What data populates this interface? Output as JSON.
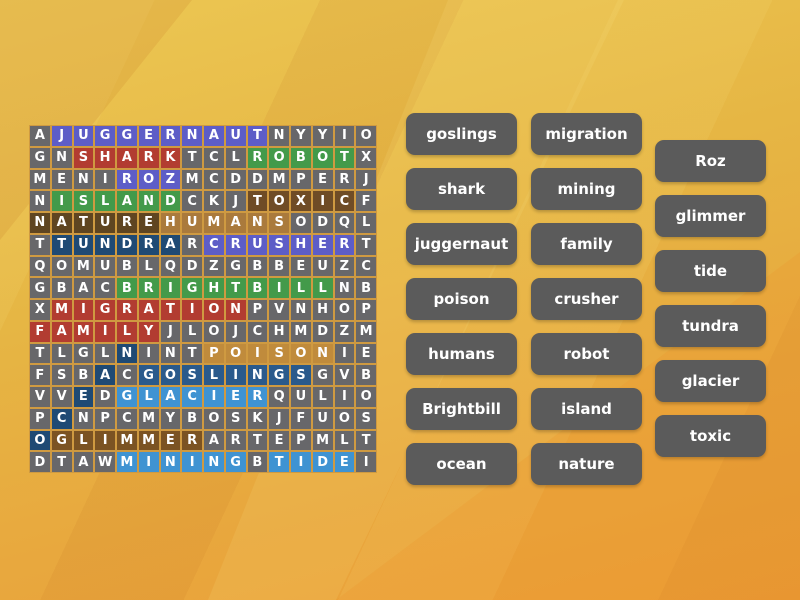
{
  "background": {
    "base_top": "#ecc753",
    "base_bottom": "#ec9e37"
  },
  "grid": {
    "rows": [
      "AJUGGERNAUTNYYIO",
      "GNSHARKTCLROBOTX",
      "MENIROZMCDDMPERJ",
      "NISLANDCKJTOXICF",
      "NATUREHUMANSODQL",
      "TTUNDRARCRUSHERT",
      "QOMUBLQDZGBBEUZC",
      "GBACBRIGHTBILLNB",
      "XMIGRATIONPVNHOP",
      "FAMILYJLOJCHMDZM",
      "TLGLNINTPOISONIE",
      "FSBACGOSLINGSGVB",
      "VVEDGLACIERQULIO",
      "PCNPCMYBOSKJFUOS",
      "OGLIMMERARTEPMLT",
      "DTAWMININGBTIDEI"
    ],
    "line_color": "#cf9a41",
    "cell_color": "#67676a",
    "letter_color": "#ffffff",
    "highlights": [
      {
        "word": "juggernaut",
        "color": "#5d5dc7",
        "cells": [
          [
            0,
            1
          ],
          [
            0,
            2
          ],
          [
            0,
            3
          ],
          [
            0,
            4
          ],
          [
            0,
            5
          ],
          [
            0,
            6
          ],
          [
            0,
            7
          ],
          [
            0,
            8
          ],
          [
            0,
            9
          ],
          [
            0,
            10
          ]
        ]
      },
      {
        "word": "shark",
        "color": "#b23c31",
        "cells": [
          [
            1,
            2
          ],
          [
            1,
            3
          ],
          [
            1,
            4
          ],
          [
            1,
            5
          ],
          [
            1,
            6
          ]
        ]
      },
      {
        "word": "robot",
        "color": "#439a4a",
        "cells": [
          [
            1,
            10
          ],
          [
            1,
            11
          ],
          [
            1,
            12
          ],
          [
            1,
            13
          ],
          [
            1,
            14
          ]
        ]
      },
      {
        "word": "Roz",
        "color": "#5d5dc7",
        "cells": [
          [
            2,
            4
          ],
          [
            2,
            5
          ],
          [
            2,
            6
          ]
        ]
      },
      {
        "word": "island",
        "color": "#439a4a",
        "cells": [
          [
            3,
            1
          ],
          [
            3,
            2
          ],
          [
            3,
            3
          ],
          [
            3,
            4
          ],
          [
            3,
            5
          ],
          [
            3,
            6
          ]
        ]
      },
      {
        "word": "toxic",
        "color": "#6f4c26",
        "cells": [
          [
            3,
            10
          ],
          [
            3,
            11
          ],
          [
            3,
            12
          ],
          [
            3,
            13
          ],
          [
            3,
            14
          ]
        ]
      },
      {
        "word": "nature",
        "color": "#5f4521",
        "cells": [
          [
            4,
            0
          ],
          [
            4,
            1
          ],
          [
            4,
            2
          ],
          [
            4,
            3
          ],
          [
            4,
            4
          ],
          [
            4,
            5
          ]
        ]
      },
      {
        "word": "humans",
        "color": "#aa7a3c",
        "cells": [
          [
            4,
            6
          ],
          [
            4,
            7
          ],
          [
            4,
            8
          ],
          [
            4,
            9
          ],
          [
            4,
            10
          ],
          [
            4,
            11
          ]
        ]
      },
      {
        "word": "tundra",
        "color": "#1f4a74",
        "cells": [
          [
            5,
            1
          ],
          [
            5,
            2
          ],
          [
            5,
            3
          ],
          [
            5,
            4
          ],
          [
            5,
            5
          ],
          [
            5,
            6
          ]
        ]
      },
      {
        "word": "crusher",
        "color": "#5d5dc7",
        "cells": [
          [
            5,
            8
          ],
          [
            5,
            9
          ],
          [
            5,
            10
          ],
          [
            5,
            11
          ],
          [
            5,
            12
          ],
          [
            5,
            13
          ],
          [
            5,
            14
          ]
        ]
      },
      {
        "word": "Brightbill",
        "color": "#439a4a",
        "cells": [
          [
            7,
            4
          ],
          [
            7,
            5
          ],
          [
            7,
            6
          ],
          [
            7,
            7
          ],
          [
            7,
            8
          ],
          [
            7,
            9
          ],
          [
            7,
            10
          ],
          [
            7,
            11
          ],
          [
            7,
            12
          ],
          [
            7,
            13
          ]
        ]
      },
      {
        "word": "migration",
        "color": "#b23c31",
        "cells": [
          [
            8,
            1
          ],
          [
            8,
            2
          ],
          [
            8,
            3
          ],
          [
            8,
            4
          ],
          [
            8,
            5
          ],
          [
            8,
            6
          ],
          [
            8,
            7
          ],
          [
            8,
            8
          ],
          [
            8,
            9
          ]
        ]
      },
      {
        "word": "family",
        "color": "#b23c31",
        "cells": [
          [
            9,
            0
          ],
          [
            9,
            1
          ],
          [
            9,
            2
          ],
          [
            9,
            3
          ],
          [
            9,
            4
          ],
          [
            9,
            5
          ]
        ]
      },
      {
        "word": "poison",
        "color": "#c08b3c",
        "cells": [
          [
            10,
            8
          ],
          [
            10,
            9
          ],
          [
            10,
            10
          ],
          [
            10,
            11
          ],
          [
            10,
            12
          ],
          [
            10,
            13
          ]
        ]
      },
      {
        "word": "goslings",
        "color": "#2a5a8c",
        "cells": [
          [
            11,
            5
          ],
          [
            11,
            6
          ],
          [
            11,
            7
          ],
          [
            11,
            8
          ],
          [
            11,
            9
          ],
          [
            11,
            10
          ],
          [
            11,
            11
          ],
          [
            11,
            12
          ]
        ]
      },
      {
        "word": "glacier",
        "color": "#3f93d2",
        "cells": [
          [
            12,
            4
          ],
          [
            12,
            5
          ],
          [
            12,
            6
          ],
          [
            12,
            7
          ],
          [
            12,
            8
          ],
          [
            12,
            9
          ],
          [
            12,
            10
          ]
        ]
      },
      {
        "word": "glimmer",
        "color": "#7b5323",
        "cells": [
          [
            14,
            1
          ],
          [
            14,
            2
          ],
          [
            14,
            3
          ],
          [
            14,
            4
          ],
          [
            14,
            5
          ],
          [
            14,
            6
          ],
          [
            14,
            7
          ]
        ]
      },
      {
        "word": "mining",
        "color": "#3f93d2",
        "cells": [
          [
            15,
            4
          ],
          [
            15,
            5
          ],
          [
            15,
            6
          ],
          [
            15,
            7
          ],
          [
            15,
            8
          ],
          [
            15,
            9
          ]
        ]
      },
      {
        "word": "tide",
        "color": "#3f93d2",
        "cells": [
          [
            15,
            11
          ],
          [
            15,
            12
          ],
          [
            15,
            13
          ],
          [
            15,
            14
          ]
        ]
      },
      {
        "word": "ocean",
        "color": "#1f4a74",
        "cells": [
          [
            14,
            0
          ],
          [
            13,
            1
          ],
          [
            12,
            2
          ],
          [
            11,
            3
          ],
          [
            10,
            4
          ]
        ]
      }
    ]
  },
  "word_bank": {
    "chip_color": "#5b5b5b",
    "text_color": "#ffffff",
    "columns": [
      {
        "words": [
          "goslings",
          "shark",
          "juggernaut",
          "poison",
          "humans",
          "Brightbill",
          "ocean"
        ]
      },
      {
        "words": [
          "migration",
          "mining",
          "family",
          "crusher",
          "robot",
          "island",
          "nature"
        ]
      },
      {
        "words": [
          "Roz",
          "glimmer",
          "tide",
          "tundra",
          "glacier",
          "toxic"
        ]
      }
    ]
  }
}
